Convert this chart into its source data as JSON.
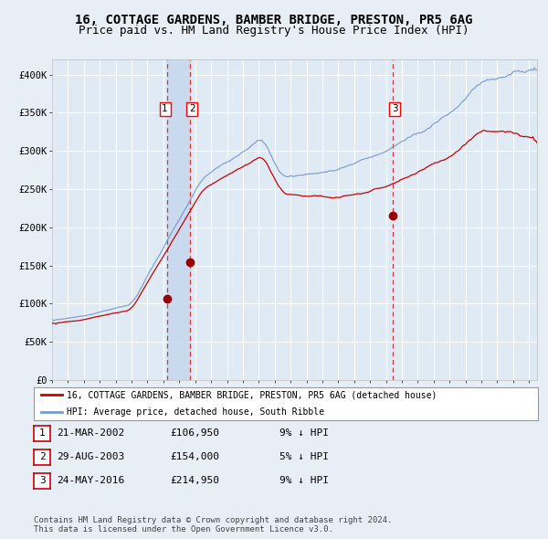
{
  "title": "16, COTTAGE GARDENS, BAMBER BRIDGE, PRESTON, PR5 6AG",
  "subtitle": "Price paid vs. HM Land Registry's House Price Index (HPI)",
  "title_fontsize": 10,
  "subtitle_fontsize": 9,
  "ylim": [
    0,
    420000
  ],
  "yticks": [
    0,
    50000,
    100000,
    150000,
    200000,
    250000,
    300000,
    350000,
    400000
  ],
  "ytick_labels": [
    "£0",
    "£50K",
    "£100K",
    "£150K",
    "£200K",
    "£250K",
    "£300K",
    "£350K",
    "£400K"
  ],
  "bg_color": "#e8eef5",
  "plot_bg": "#e0eaf5",
  "grid_color": "#ffffff",
  "red_line_color": "#cc0000",
  "blue_line_color": "#7799cc",
  "sale_marker_color": "#990000",
  "dashed_line_color": "#dd3333",
  "shade_color": "#c5d8ef",
  "transaction1_date": 2002.22,
  "transaction1_price": 106950,
  "transaction2_date": 2003.66,
  "transaction2_price": 154000,
  "transaction3_date": 2016.4,
  "transaction3_price": 214950,
  "legend_red": "16, COTTAGE GARDENS, BAMBER BRIDGE, PRESTON, PR5 6AG (detached house)",
  "legend_blue": "HPI: Average price, detached house, South Ribble",
  "table_entries": [
    {
      "num": 1,
      "date": "21-MAR-2002",
      "price": "£106,950",
      "hpi": "9% ↓ HPI"
    },
    {
      "num": 2,
      "date": "29-AUG-2003",
      "price": "£154,000",
      "hpi": "5% ↓ HPI"
    },
    {
      "num": 3,
      "date": "24-MAY-2016",
      "price": "£214,950",
      "hpi": "9% ↓ HPI"
    }
  ],
  "footnote": "Contains HM Land Registry data © Crown copyright and database right 2024.\nThis data is licensed under the Open Government Licence v3.0."
}
